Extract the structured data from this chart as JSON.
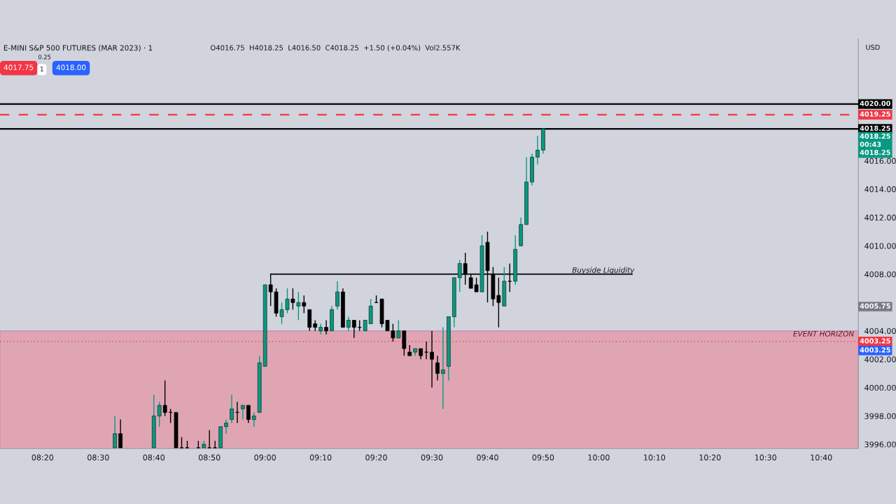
{
  "chart_data": {
    "type": "candlestick",
    "title": "E-MINI S&P 500 FUTURES (MAR 2023) · 1",
    "subtitle": "O4016.75  H4018.25  L4016.50  C4018.25  +1.50 (+0.04%)  Vol2.557K",
    "x": [
      8.55,
      8.5667,
      8.6667,
      8.6833,
      8.7,
      8.7167,
      8.7333,
      8.75,
      8.7667,
      8.8,
      8.8167,
      8.8333,
      8.85,
      8.8667,
      8.8833,
      8.9,
      8.9167,
      8.9333,
      8.95,
      8.9667,
      8.9833,
      9,
      9.0167,
      9.0333,
      9.05,
      9.0667,
      9.0833,
      9.1,
      9.1167,
      9.1333,
      9.15,
      9.1667,
      9.1833,
      9.2,
      9.2167,
      9.2333,
      9.25,
      9.2667,
      9.2833,
      9.3,
      9.3167,
      9.3333,
      9.35,
      9.3667,
      9.3833,
      9.4,
      9.4167,
      9.4333,
      9.45,
      9.4667,
      9.4833,
      9.5,
      9.5167,
      9.5333,
      9.55,
      9.5667,
      9.5833,
      9.6,
      9.6167,
      9.6333,
      9.65,
      9.6667,
      9.6833,
      9.7,
      9.7167,
      9.7333,
      9.75,
      9.7667,
      9.7833,
      9.8,
      9.8167,
      9.8333
    ],
    "ohlc": [
      [
        3995.75,
        3998.0,
        3995.75,
        3996.75
      ],
      [
        3996.75,
        3997.75,
        3995.75,
        3995.75
      ],
      [
        3995.75,
        3999.5,
        3995.75,
        3998.0
      ],
      [
        3998.0,
        3999.0,
        3997.25,
        3998.75
      ],
      [
        3998.75,
        4000.5,
        3998.0,
        3998.25
      ],
      [
        3998.25,
        3998.5,
        3997.5,
        3998.25
      ],
      [
        3998.25,
        3998.25,
        3995.75,
        3995.75
      ],
      [
        3995.75,
        3996.5,
        3995.75,
        3995.75
      ],
      [
        3995.75,
        3996.25,
        3995.75,
        3995.75
      ],
      [
        3995.75,
        3996.25,
        3995.75,
        3995.75
      ],
      [
        3995.75,
        3996.25,
        3995.75,
        3996.0
      ],
      [
        3995.75,
        3997.0,
        3995.75,
        3995.75
      ],
      [
        3995.75,
        3996.25,
        3995.75,
        3995.75
      ],
      [
        3995.75,
        3997.25,
        3995.75,
        3997.25
      ],
      [
        3997.25,
        3997.75,
        3996.75,
        3997.5
      ],
      [
        3997.75,
        3999.5,
        3997.5,
        3998.5
      ],
      [
        3998.25,
        3999.0,
        3997.5,
        3998.25
      ],
      [
        3998.5,
        3998.75,
        3997.75,
        3998.75
      ],
      [
        3998.75,
        3998.75,
        3997.5,
        3997.75
      ],
      [
        3997.75,
        3998.25,
        3997.25,
        3998.0
      ],
      [
        3998.25,
        4002.25,
        3998.25,
        4001.75
      ],
      [
        4001.5,
        4007.25,
        4001.5,
        4007.25
      ],
      [
        4007.25,
        4008.0,
        4005.75,
        4006.75
      ],
      [
        4006.75,
        4007.0,
        4005.0,
        4005.25
      ],
      [
        4005.0,
        4006.0,
        4004.5,
        4005.5
      ],
      [
        4005.5,
        4007.0,
        4005.25,
        4006.25
      ],
      [
        4006.25,
        4007.0,
        4005.5,
        4006.0
      ],
      [
        4005.75,
        4006.75,
        4004.75,
        4006.0
      ],
      [
        4006.0,
        4006.5,
        4005.25,
        4005.75
      ],
      [
        4005.5,
        4005.5,
        4004.0,
        4004.25
      ],
      [
        4004.5,
        4004.75,
        4004.0,
        4004.25
      ],
      [
        4004.0,
        4004.5,
        4003.75,
        4004.25
      ],
      [
        4004.25,
        4004.75,
        4003.75,
        4004.0
      ],
      [
        4004.0,
        4005.75,
        4004.0,
        4005.5
      ],
      [
        4005.75,
        4007.5,
        4005.5,
        4006.75
      ],
      [
        4006.75,
        4007.0,
        4004.25,
        4004.25
      ],
      [
        4004.25,
        4005.0,
        4004.0,
        4004.75
      ],
      [
        4004.75,
        4004.75,
        4003.5,
        4004.25
      ],
      [
        4004.25,
        4004.75,
        4004.0,
        4004.25
      ],
      [
        4004.0,
        4004.75,
        4004.0,
        4004.75
      ],
      [
        4004.5,
        4006.25,
        4004.5,
        4005.75
      ],
      [
        4006.0,
        4006.5,
        4006.0,
        4006.0
      ],
      [
        4006.25,
        4006.25,
        4004.25,
        4004.5
      ],
      [
        4004.75,
        4004.75,
        4004.0,
        4004.0
      ],
      [
        4004.0,
        4004.5,
        4003.25,
        4003.5
      ],
      [
        4003.5,
        4004.75,
        4003.5,
        4004.0
      ],
      [
        4004.0,
        4004.0,
        4002.25,
        4002.75
      ],
      [
        4002.5,
        4003.0,
        4002.25,
        4002.25
      ],
      [
        4002.5,
        4002.75,
        4002.25,
        4002.75
      ],
      [
        4002.75,
        4002.75,
        4002.0,
        4002.25
      ],
      [
        4002.5,
        4003.25,
        4002.0,
        4002.5
      ],
      [
        4002.5,
        4004.0,
        4000.0,
        4002.0
      ],
      [
        4001.75,
        4002.25,
        4000.5,
        4001.0
      ],
      [
        4001.0,
        4004.25,
        3998.5,
        4001.25
      ],
      [
        4001.5,
        4005.0,
        4000.5,
        4005.0
      ],
      [
        4005.0,
        4007.75,
        4004.25,
        4007.75
      ],
      [
        4007.75,
        4009.0,
        4006.75,
        4008.75
      ],
      [
        4008.75,
        4009.5,
        4007.25,
        4008.0
      ],
      [
        4007.75,
        4008.0,
        4007.0,
        4007.0
      ],
      [
        4007.25,
        4007.75,
        4006.75,
        4006.75
      ],
      [
        4006.75,
        4010.75,
        4006.75,
        4010.0
      ],
      [
        4010.25,
        4011.0,
        4006.0,
        4008.25
      ],
      [
        4008.0,
        4008.5,
        4005.75,
        4006.25
      ],
      [
        4006.5,
        4007.75,
        4004.25,
        4006.0
      ],
      [
        4005.75,
        4008.5,
        4005.75,
        4007.5
      ],
      [
        4007.5,
        4008.75,
        4006.75,
        4007.5
      ],
      [
        4007.5,
        4010.75,
        4007.25,
        4009.75
      ],
      [
        4010.0,
        4012.0,
        4010.0,
        4011.5
      ],
      [
        4011.5,
        4016.25,
        4011.5,
        4014.5
      ],
      [
        4014.5,
        4016.5,
        4014.25,
        4016.25
      ],
      [
        4016.25,
        4017.75,
        4015.75,
        4016.75
      ],
      [
        4016.75,
        4018.25,
        4016.5,
        4018.25
      ]
    ],
    "colors": [
      "#089981",
      "#000000",
      "#089981",
      "#089981",
      "#000000",
      "#000000",
      "#000000",
      "#000000",
      "#000000",
      "#000000",
      "#089981",
      "#000000",
      "#000000",
      "#089981",
      "#089981",
      "#089981",
      "#000000",
      "#089981",
      "#000000",
      "#089981",
      "#089981",
      "#089981",
      "#000000",
      "#000000",
      "#089981",
      "#089981",
      "#000000",
      "#089981",
      "#000000",
      "#000000",
      "#000000",
      "#089981",
      "#000000",
      "#089981",
      "#089981",
      "#000000",
      "#089981",
      "#000000",
      "#000000",
      "#089981",
      "#089981",
      "#000000",
      "#000000",
      "#000000",
      "#000000",
      "#089981",
      "#000000",
      "#000000",
      "#089981",
      "#000000",
      "#000000",
      "#000000",
      "#000000",
      "#089981",
      "#089981",
      "#089981",
      "#089981",
      "#000000",
      "#000000",
      "#000000",
      "#089981",
      "#000000",
      "#000000",
      "#000000",
      "#089981",
      "#000000",
      "#089981",
      "#089981",
      "#089981",
      "#089981",
      "#089981",
      "#089981"
    ],
    "series": [
      {
        "type": "line",
        "x": [
          9.0167,
          10.1
        ],
        "values": [
          4008,
          4008
        ],
        "color": "#000000"
      }
    ],
    "xlim": [
      8.2056,
      10.778
    ],
    "xticks": [
      {
        "value": 8.3333,
        "label": "08:20"
      },
      {
        "value": 8.5,
        "label": "08:30"
      },
      {
        "value": 8.6667,
        "label": "08:40"
      },
      {
        "value": 8.8333,
        "label": "08:50"
      },
      {
        "value": 9,
        "label": "09:00"
      },
      {
        "value": 9.1667,
        "label": "09:10"
      },
      {
        "value": 9.3333,
        "label": "09:20"
      },
      {
        "value": 9.5,
        "label": "09:30"
      },
      {
        "value": 9.6667,
        "label": "09:40"
      },
      {
        "value": 9.8333,
        "label": "09:50"
      },
      {
        "value": 10,
        "label": "10:00"
      },
      {
        "value": 10.1667,
        "label": "10:10"
      },
      {
        "value": 10.3333,
        "label": "10:20"
      },
      {
        "value": 10.5,
        "label": "10:30"
      },
      {
        "value": 10.6667,
        "label": "10:40"
      }
    ],
    "ylim": [
      3995.7,
      4024.6
    ],
    "yticks": [
      {
        "value": 3996,
        "label": "3996.00"
      },
      {
        "value": 3998,
        "label": "3998.00"
      },
      {
        "value": 4000,
        "label": "4000.00"
      },
      {
        "value": 4002,
        "label": "4002.00"
      },
      {
        "value": 4004,
        "label": "4004.00"
      },
      {
        "value": 4008,
        "label": "4008.00"
      },
      {
        "value": 4010,
        "label": "4010.00"
      },
      {
        "value": 4012,
        "label": "4012.00"
      },
      {
        "value": 4014,
        "label": "4014.00"
      },
      {
        "value": 4016,
        "label": "4016.00"
      }
    ],
    "ref_lines": [
      {
        "axis": "y",
        "value": 4020.0,
        "label": "4020.00",
        "color": "#000000",
        "line_style": "solid"
      },
      {
        "axis": "y",
        "value": 4019.25,
        "label": "4019.25",
        "color": "#f23645",
        "line_style": "dashed"
      },
      {
        "axis": "y",
        "value": 4018.25,
        "label": "4018.25",
        "color": "#000000",
        "line_style": "solid"
      },
      {
        "axis": "y",
        "value": 4003.25,
        "label": "4003.25",
        "color": "#f23645",
        "line_style": "dotted"
      }
    ],
    "bands": [
      {
        "axis": "y",
        "from": 3995.7,
        "to": 4004.0,
        "label": "EVENT HORIZON",
        "color": "#e0a5b3"
      }
    ],
    "annotations": [
      "4017.75",
      "0.25",
      "1",
      "4018.00",
      "USD",
      {
        "text": "Buyside Liquidity",
        "x": 9.92,
        "y": 4008
      },
      "4018.25\n00:43\n4018.25",
      "4005.75",
      "4003.25"
    ]
  }
}
